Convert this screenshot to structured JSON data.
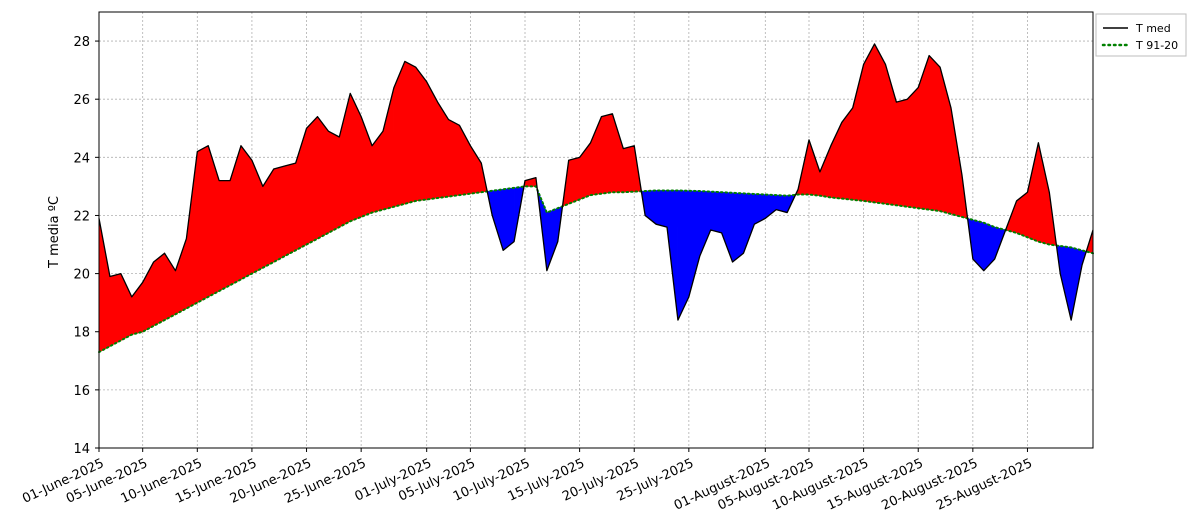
{
  "chart_data": {
    "type": "area",
    "title": "",
    "xlabel": "",
    "ylabel": "T media ºC",
    "ylim": [
      14,
      29
    ],
    "xlim": [
      "2025-06-01",
      "2025-08-31"
    ],
    "yticks": [
      14,
      16,
      18,
      20,
      22,
      24,
      26,
      28
    ],
    "grid": true,
    "legend_position": "right, outside top",
    "colors": {
      "above": "#ff0000",
      "below": "#0000ff",
      "tmed_line": "#000000",
      "climatology_line": "#008000"
    },
    "xtick_labels": [
      "01-June-2025",
      "05-June-2025",
      "10-June-2025",
      "15-June-2025",
      "20-June-2025",
      "25-June-2025",
      "01-July-2025",
      "05-July-2025",
      "10-July-2025",
      "15-July-2025",
      "20-July-2025",
      "25-July-2025",
      "01-August-2025",
      "05-August-2025",
      "10-August-2025",
      "15-August-2025",
      "20-August-2025",
      "25-August-2025"
    ],
    "x": [
      "2025-06-01",
      "2025-06-02",
      "2025-06-03",
      "2025-06-04",
      "2025-06-05",
      "2025-06-06",
      "2025-06-07",
      "2025-06-08",
      "2025-06-09",
      "2025-06-10",
      "2025-06-11",
      "2025-06-12",
      "2025-06-13",
      "2025-06-14",
      "2025-06-15",
      "2025-06-16",
      "2025-06-17",
      "2025-06-18",
      "2025-06-19",
      "2025-06-20",
      "2025-06-21",
      "2025-06-22",
      "2025-06-23",
      "2025-06-24",
      "2025-06-25",
      "2025-06-26",
      "2025-06-27",
      "2025-06-28",
      "2025-06-29",
      "2025-06-30",
      "2025-07-01",
      "2025-07-02",
      "2025-07-03",
      "2025-07-04",
      "2025-07-05",
      "2025-07-06",
      "2025-07-07",
      "2025-07-08",
      "2025-07-09",
      "2025-07-10",
      "2025-07-11",
      "2025-07-12",
      "2025-07-13",
      "2025-07-14",
      "2025-07-15",
      "2025-07-16",
      "2025-07-17",
      "2025-07-18",
      "2025-07-19",
      "2025-07-20",
      "2025-07-21",
      "2025-07-22",
      "2025-07-23",
      "2025-07-24",
      "2025-07-25",
      "2025-07-26",
      "2025-07-27",
      "2025-07-28",
      "2025-07-29",
      "2025-07-30",
      "2025-07-31",
      "2025-08-01",
      "2025-08-02",
      "2025-08-03",
      "2025-08-04",
      "2025-08-05",
      "2025-08-06",
      "2025-08-07",
      "2025-08-08",
      "2025-08-09",
      "2025-08-10",
      "2025-08-11",
      "2025-08-12",
      "2025-08-13",
      "2025-08-14",
      "2025-08-15",
      "2025-08-16",
      "2025-08-17",
      "2025-08-18",
      "2025-08-19",
      "2025-08-20",
      "2025-08-21",
      "2025-08-22",
      "2025-08-23",
      "2025-08-24",
      "2025-08-25",
      "2025-08-26",
      "2025-08-27",
      "2025-08-28",
      "2025-08-29",
      "2025-08-30",
      "2025-08-31"
    ],
    "series": [
      {
        "name": "T med",
        "style": "solid",
        "values": [
          21.9,
          19.9,
          20.0,
          19.2,
          19.7,
          20.4,
          20.7,
          20.1,
          21.2,
          24.2,
          24.4,
          23.2,
          23.2,
          24.4,
          23.9,
          23.0,
          23.6,
          23.7,
          23.8,
          25.0,
          25.4,
          24.9,
          24.7,
          26.2,
          25.4,
          24.4,
          24.9,
          26.4,
          27.3,
          27.1,
          26.6,
          25.9,
          25.3,
          25.1,
          24.4,
          23.8,
          22.0,
          20.8,
          21.1,
          23.2,
          23.3,
          20.1,
          21.1,
          23.9,
          24.0,
          24.5,
          25.4,
          25.5,
          24.3,
          24.4,
          22.0,
          21.7,
          21.6,
          18.4,
          19.2,
          20.6,
          21.5,
          21.4,
          20.4,
          20.7,
          21.7,
          21.9,
          22.2,
          22.1,
          22.9,
          24.6,
          23.5,
          24.4,
          25.2,
          25.7,
          27.2,
          27.9,
          27.2,
          25.9,
          26.0,
          26.4,
          27.5,
          27.1,
          25.7,
          23.4,
          20.5,
          20.1,
          20.5,
          21.5,
          22.5,
          22.8,
          24.5,
          22.8,
          20.0,
          18.4,
          20.3,
          21.5
        ]
      },
      {
        "name": "T 91-20",
        "style": "dotted",
        "values": [
          17.3,
          17.5,
          17.7,
          17.9,
          18.0,
          18.2,
          18.4,
          18.6,
          18.8,
          19.0,
          19.2,
          19.4,
          19.6,
          19.8,
          20.0,
          20.2,
          20.4,
          20.6,
          20.8,
          21.0,
          21.2,
          21.4,
          21.6,
          21.8,
          21.95,
          22.1,
          22.2,
          22.3,
          22.4,
          22.5,
          22.55,
          22.6,
          22.65,
          22.7,
          22.75,
          22.8,
          22.85,
          22.9,
          22.95,
          23.0,
          23.0,
          22.1,
          22.25,
          22.4,
          22.55,
          22.7,
          22.75,
          22.8,
          22.8,
          22.82,
          22.84,
          22.86,
          22.86,
          22.86,
          22.85,
          22.84,
          22.82,
          22.8,
          22.78,
          22.76,
          22.74,
          22.72,
          22.7,
          22.68,
          22.72,
          22.72,
          22.68,
          22.62,
          22.58,
          22.54,
          22.5,
          22.45,
          22.4,
          22.35,
          22.3,
          22.25,
          22.2,
          22.15,
          22.05,
          21.95,
          21.85,
          21.75,
          21.6,
          21.5,
          21.4,
          21.25,
          21.1,
          21.0,
          20.95,
          20.9,
          20.8,
          20.7
        ]
      }
    ]
  }
}
